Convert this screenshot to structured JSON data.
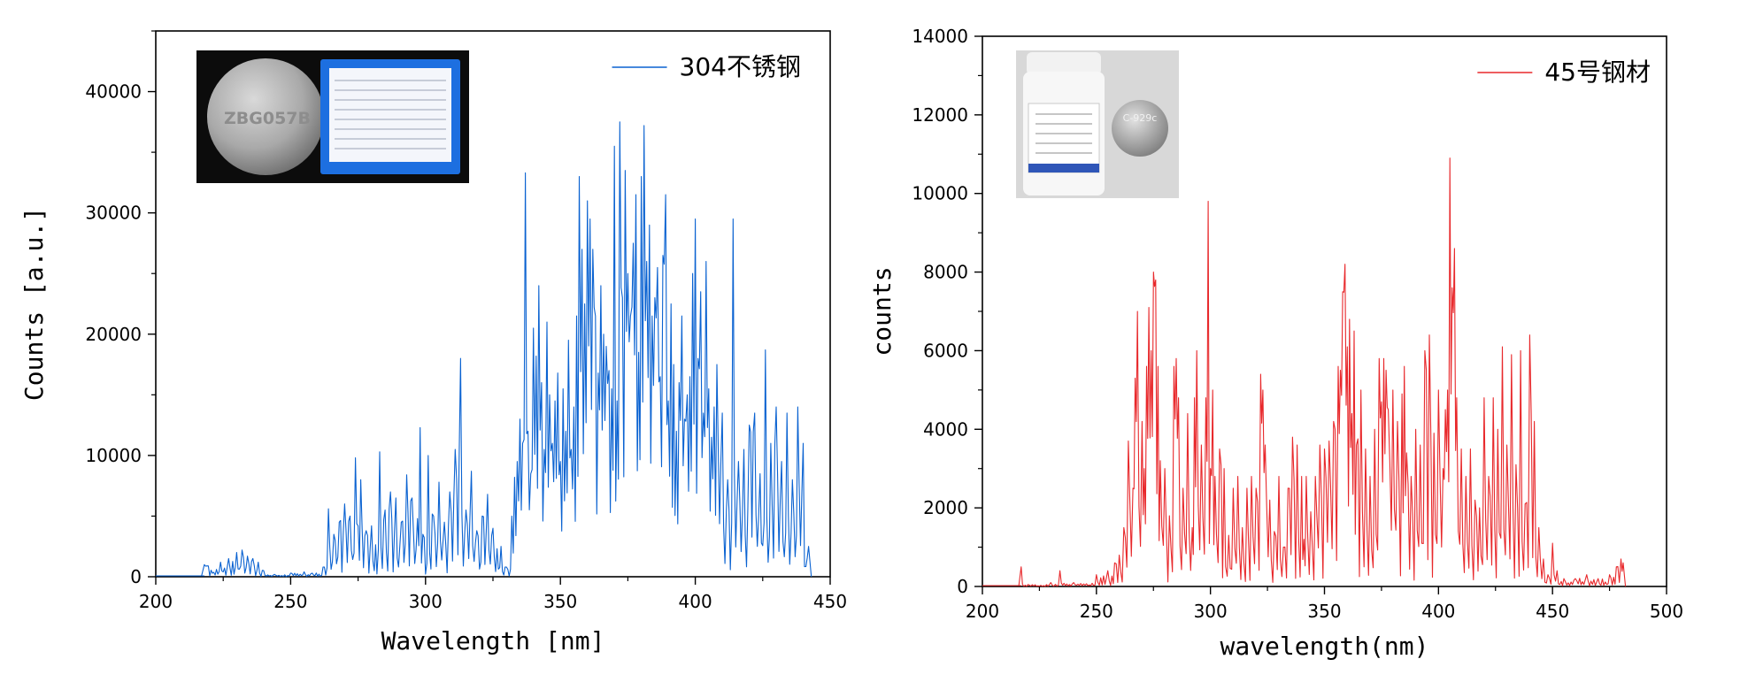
{
  "chart_data": [
    {
      "type": "line",
      "xlabel": "Wavelength [nm]",
      "ylabel": "Counts [a.u.]",
      "xlim": [
        200,
        450
      ],
      "ylim": [
        0,
        45000
      ],
      "x_ticks": [
        200,
        250,
        300,
        350,
        400,
        450
      ],
      "y_ticks": [
        0,
        10000,
        20000,
        30000,
        40000
      ],
      "legend_position": "top-right",
      "series": [
        {
          "name": "304不锈钢",
          "color": "#0a62d1",
          "x": [
            218,
            219,
            224,
            227,
            230,
            232,
            234,
            236,
            238,
            240,
            244,
            250,
            255,
            258,
            262,
            264,
            266,
            268,
            270,
            272,
            274,
            275,
            276,
            278,
            280,
            283,
            285,
            287,
            289,
            291,
            293,
            295,
            297,
            298,
            299,
            301,
            303,
            305,
            307,
            309,
            311,
            313,
            315,
            317,
            319,
            321,
            323,
            325,
            328,
            330,
            332,
            333,
            334,
            335,
            336,
            337,
            338,
            339,
            340,
            341,
            342,
            343,
            344,
            345,
            346,
            347,
            348,
            349,
            350,
            351,
            352,
            353,
            354,
            355,
            356,
            357,
            358,
            359,
            360,
            361,
            362,
            363,
            364,
            365,
            366,
            367,
            368,
            369,
            370,
            371,
            372,
            373,
            374,
            375,
            376,
            377,
            378,
            379,
            380,
            381,
            382,
            383,
            384,
            385,
            386,
            387,
            388,
            389,
            390,
            391,
            392,
            393,
            394,
            395,
            396,
            397,
            398,
            399,
            400,
            401,
            402,
            403,
            404,
            405,
            406,
            407,
            408,
            410,
            412,
            414,
            416,
            418,
            420,
            422,
            424,
            426,
            428,
            430,
            432,
            434,
            436,
            438,
            440,
            442
          ],
          "values": [
            1000,
            900,
            1200,
            1500,
            2000,
            2200,
            1700,
            1500,
            1200,
            500,
            200,
            300,
            400,
            300,
            800,
            5600,
            3500,
            4500,
            6000,
            5000,
            9800,
            4200,
            8000,
            3800,
            4200,
            10300,
            5500,
            7000,
            6500,
            4500,
            8400,
            6500,
            4800,
            12300,
            3500,
            10000,
            5000,
            7800,
            4500,
            7000,
            10500,
            18000,
            5500,
            8700,
            3800,
            5000,
            6800,
            4000,
            2500,
            800,
            5000,
            8200,
            9500,
            13000,
            11000,
            33300,
            12000,
            8500,
            20500,
            18200,
            24000,
            16000,
            10500,
            21000,
            15000,
            11000,
            14500,
            16800,
            9500,
            15500,
            12000,
            19500,
            10500,
            14000,
            21500,
            33000,
            27000,
            22500,
            31000,
            29500,
            27000,
            21500,
            16800,
            24000,
            20000,
            19000,
            17000,
            15500,
            35500,
            14500,
            37500,
            23000,
            33500,
            25000,
            21500,
            27500,
            31500,
            18500,
            33000,
            37200,
            26000,
            29000,
            21500,
            23000,
            25500,
            16500,
            26500,
            31500,
            14500,
            22500,
            17500,
            12000,
            16000,
            21500,
            13000,
            15000,
            16500,
            25000,
            29500,
            18000,
            23500,
            13500,
            26000,
            15500,
            11500,
            14000,
            17500,
            13500,
            8000,
            29500,
            9500,
            10500,
            12500,
            13500,
            8500,
            18700,
            11000,
            14000,
            9500,
            13500,
            8000,
            14000,
            11000,
            2500
          ]
        }
      ],
      "inset_label": "ZBG057B"
    },
    {
      "type": "line",
      "xlabel": "wavelength(nm)",
      "ylabel": "counts",
      "xlim": [
        200,
        500
      ],
      "ylim": [
        0,
        14000
      ],
      "x_ticks": [
        200,
        250,
        300,
        350,
        400,
        450,
        500
      ],
      "y_ticks": [
        0,
        2000,
        4000,
        6000,
        8000,
        10000,
        12000,
        14000
      ],
      "legend_position": "top-right",
      "series": [
        {
          "name": "45号钢材",
          "color": "#e8282b",
          "x": [
            217,
            220,
            230,
            234,
            240,
            250,
            255,
            258,
            260,
            262,
            264,
            266,
            267,
            268,
            270,
            271,
            272,
            273,
            274,
            275,
            276,
            277,
            278,
            280,
            282,
            284,
            285,
            286,
            288,
            290,
            292,
            293,
            294,
            296,
            298,
            299,
            300,
            301,
            302,
            304,
            306,
            308,
            310,
            312,
            314,
            316,
            318,
            320,
            322,
            323,
            324,
            326,
            328,
            330,
            332,
            334,
            336,
            338,
            340,
            341,
            342,
            344,
            346,
            348,
            350,
            352,
            354,
            356,
            357,
            358,
            359,
            360,
            361,
            362,
            363,
            364,
            366,
            368,
            370,
            372,
            374,
            375,
            376,
            377,
            378,
            380,
            382,
            384,
            385,
            386,
            388,
            390,
            392,
            394,
            396,
            398,
            400,
            402,
            403,
            404,
            405,
            406,
            407,
            408,
            410,
            412,
            414,
            416,
            418,
            420,
            422,
            424,
            426,
            428,
            430,
            432,
            434,
            436,
            438,
            440,
            442,
            444,
            446,
            448,
            450,
            452,
            455,
            460,
            465,
            470,
            475,
            478,
            480,
            481
          ],
          "values": [
            500,
            50,
            100,
            400,
            100,
            300,
            400,
            600,
            800,
            1500,
            3700,
            2500,
            5300,
            7000,
            4200,
            3000,
            5600,
            7100,
            6000,
            8000,
            7800,
            5600,
            3200,
            3000,
            1800,
            5600,
            5800,
            4800,
            2500,
            4400,
            1500,
            4800,
            6000,
            3600,
            4800,
            9800,
            3000,
            5000,
            2800,
            3500,
            3000,
            1300,
            2500,
            2800,
            1500,
            2500,
            2800,
            2500,
            5400,
            5000,
            3600,
            2200,
            1400,
            2800,
            1000,
            2500,
            3800,
            3600,
            2800,
            1200,
            2800,
            1900,
            2800,
            3600,
            3500,
            3700,
            4200,
            5600,
            5500,
            7500,
            8200,
            6100,
            6800,
            4400,
            6500,
            3600,
            5000,
            3500,
            2800,
            4000,
            5800,
            4700,
            5800,
            5500,
            4500,
            5000,
            4200,
            4900,
            5600,
            3400,
            2800,
            4000,
            3600,
            6000,
            6400,
            3900,
            5000,
            3000,
            4500,
            5000,
            10900,
            7600,
            8600,
            4800,
            3500,
            2800,
            3500,
            2200,
            2000,
            4800,
            2800,
            4800,
            4000,
            6100,
            3600,
            5900,
            3100,
            6000,
            2100,
            6400,
            4200,
            1500,
            700,
            300,
            1100,
            400,
            200,
            200,
            300,
            200,
            300,
            500,
            700,
            600
          ]
        }
      ],
      "inset_label": "C-929c"
    }
  ]
}
